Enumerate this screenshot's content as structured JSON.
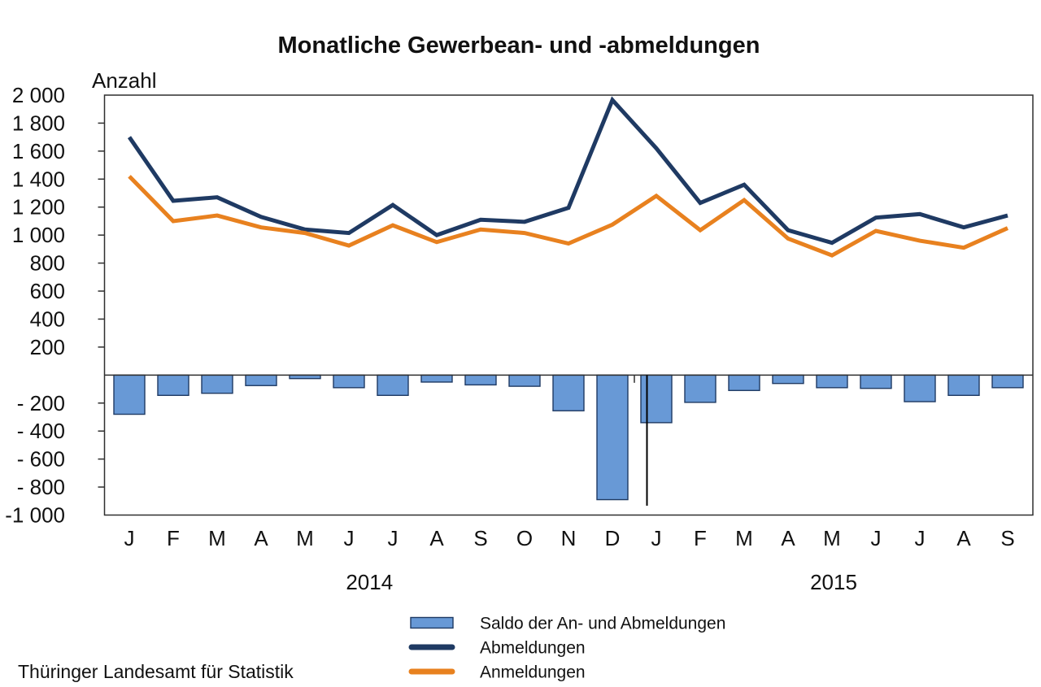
{
  "title": "Monatliche Gewerbean- und -abmeldungen",
  "y_axis_label": "Anzahl",
  "source": "Thüringer Landesamt für Statistik",
  "legend": {
    "saldo_label": "Saldo der An- und Abmeldungen",
    "abmeldungen_label": "Abmeldungen",
    "anmeldungen_label": "Anmeldungen"
  },
  "chart_data": {
    "type": "bar+line combo",
    "categories": [
      "J",
      "F",
      "M",
      "A",
      "M",
      "J",
      "J",
      "A",
      "S",
      "O",
      "N",
      "D",
      "J",
      "F",
      "M",
      "A",
      "M",
      "J",
      "J",
      "A",
      "S"
    ],
    "year_groups": [
      {
        "label": "2014",
        "from": 0,
        "to": 11
      },
      {
        "label": "2015",
        "from": 12,
        "to": 20
      }
    ],
    "series": [
      {
        "name": "Saldo der An- und Abmeldungen",
        "type": "bar",
        "color": "#6899d6",
        "border_color": "#1f3a63",
        "values": [
          -280,
          -145,
          -130,
          -75,
          -25,
          -90,
          -145,
          -50,
          -70,
          -80,
          -255,
          -890,
          -340,
          -195,
          -110,
          -60,
          -90,
          -95,
          -190,
          -145,
          -90
        ]
      },
      {
        "name": "Abmeldungen",
        "type": "line",
        "color": "#1f3a63",
        "values": [
          1700,
          1245,
          1270,
          1130,
          1040,
          1015,
          1215,
          1000,
          1110,
          1095,
          1195,
          1965,
          1620,
          1230,
          1360,
          1035,
          945,
          1125,
          1150,
          1055,
          1140
        ]
      },
      {
        "name": "Anmeldungen",
        "type": "line",
        "color": "#e8811f",
        "values": [
          1420,
          1100,
          1140,
          1055,
          1015,
          925,
          1070,
          950,
          1040,
          1015,
          940,
          1075,
          1280,
          1035,
          1250,
          975,
          855,
          1030,
          960,
          910,
          1050
        ]
      }
    ],
    "ylim": [
      -1000,
      2000
    ],
    "y_tick_step": 200,
    "y_tick_labels": [
      "2 000",
      "1 800",
      "1 600",
      "1 400",
      "1 200",
      "1 000",
      "800",
      "600",
      "400",
      "200",
      "",
      "- 200",
      "- 400",
      "- 600",
      "- 800",
      "-1 000"
    ],
    "grid": "off",
    "legend_position": "bottom-center",
    "zero_line": true,
    "year_separator": true
  }
}
